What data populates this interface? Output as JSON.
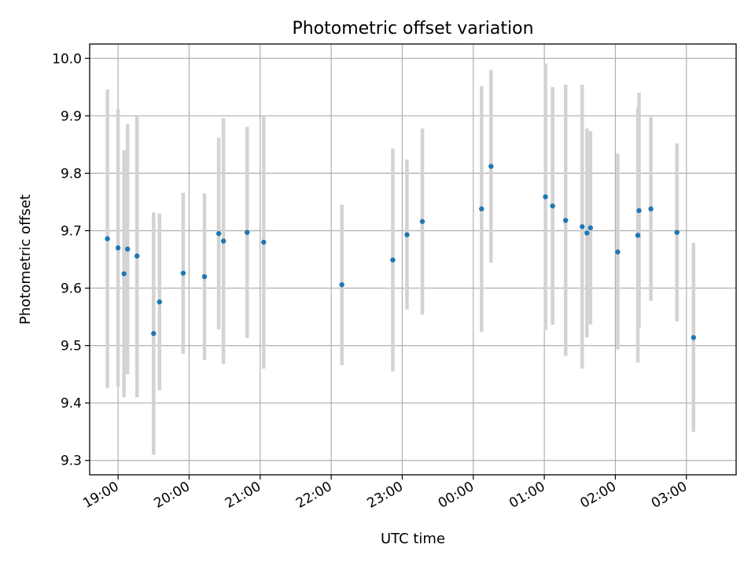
{
  "chart_data": {
    "type": "scatter",
    "title": "Photometric offset variation",
    "xlabel": "UTC time",
    "ylabel": "Photometric offset",
    "x_ticks": [
      "19:00",
      "20:00",
      "21:00",
      "22:00",
      "23:00",
      "00:00",
      "01:00",
      "02:00",
      "03:00"
    ],
    "y_ticks": [
      "9.3",
      "9.4",
      "9.5",
      "9.6",
      "9.7",
      "9.8",
      "9.9",
      "10.0"
    ],
    "xlim": [
      "18:36",
      "03:42"
    ],
    "ylim": [
      9.275,
      10.025
    ],
    "grid": true,
    "colors": {
      "point": "#1f77b4",
      "errorbar": "#d3d3d3"
    },
    "points": [
      {
        "time": "18:51",
        "y": 9.686,
        "low": 9.426,
        "high": 9.946
      },
      {
        "time": "19:00",
        "y": 9.67,
        "low": 9.428,
        "high": 9.912
      },
      {
        "time": "19:05",
        "y": 9.625,
        "low": 9.41,
        "high": 9.84
      },
      {
        "time": "19:08",
        "y": 9.668,
        "low": 9.45,
        "high": 9.886
      },
      {
        "time": "19:16",
        "y": 9.656,
        "low": 9.41,
        "high": 9.9
      },
      {
        "time": "19:30",
        "y": 9.521,
        "low": 9.31,
        "high": 9.732
      },
      {
        "time": "19:35",
        "y": 9.576,
        "low": 9.422,
        "high": 9.73
      },
      {
        "time": "19:55",
        "y": 9.626,
        "low": 9.486,
        "high": 9.766
      },
      {
        "time": "20:13",
        "y": 9.62,
        "low": 9.475,
        "high": 9.765
      },
      {
        "time": "20:25",
        "y": 9.695,
        "low": 9.528,
        "high": 9.862
      },
      {
        "time": "20:29",
        "y": 9.682,
        "low": 9.468,
        "high": 9.896
      },
      {
        "time": "20:49",
        "y": 9.697,
        "low": 9.513,
        "high": 9.881
      },
      {
        "time": "21:03",
        "y": 9.68,
        "low": 9.46,
        "high": 9.9
      },
      {
        "time": "22:09",
        "y": 9.606,
        "low": 9.466,
        "high": 9.745
      },
      {
        "time": "22:52",
        "y": 9.649,
        "low": 9.455,
        "high": 9.843
      },
      {
        "time": "23:04",
        "y": 9.693,
        "low": 9.563,
        "high": 9.824
      },
      {
        "time": "23:17",
        "y": 9.716,
        "low": 9.554,
        "high": 9.878
      },
      {
        "time": "00:07",
        "y": 9.738,
        "low": 9.524,
        "high": 9.952
      },
      {
        "time": "00:15",
        "y": 9.812,
        "low": 9.644,
        "high": 9.98
      },
      {
        "time": "01:01",
        "y": 9.759,
        "low": 9.527,
        "high": 9.991
      },
      {
        "time": "01:07",
        "y": 9.743,
        "low": 9.536,
        "high": 9.95
      },
      {
        "time": "01:18",
        "y": 9.718,
        "low": 9.482,
        "high": 9.954
      },
      {
        "time": "01:32",
        "y": 9.707,
        "low": 9.46,
        "high": 9.954
      },
      {
        "time": "01:36",
        "y": 9.696,
        "low": 9.514,
        "high": 9.878
      },
      {
        "time": "01:39",
        "y": 9.705,
        "low": 9.537,
        "high": 9.873
      },
      {
        "time": "02:02",
        "y": 9.663,
        "low": 9.493,
        "high": 9.834
      },
      {
        "time": "02:19",
        "y": 9.692,
        "low": 9.47,
        "high": 9.914
      },
      {
        "time": "02:20",
        "y": 9.735,
        "low": 9.53,
        "high": 9.94
      },
      {
        "time": "02:30",
        "y": 9.738,
        "low": 9.578,
        "high": 9.898
      },
      {
        "time": "02:52",
        "y": 9.697,
        "low": 9.542,
        "high": 9.852
      },
      {
        "time": "03:06",
        "y": 9.514,
        "low": 9.35,
        "high": 9.679
      }
    ]
  }
}
